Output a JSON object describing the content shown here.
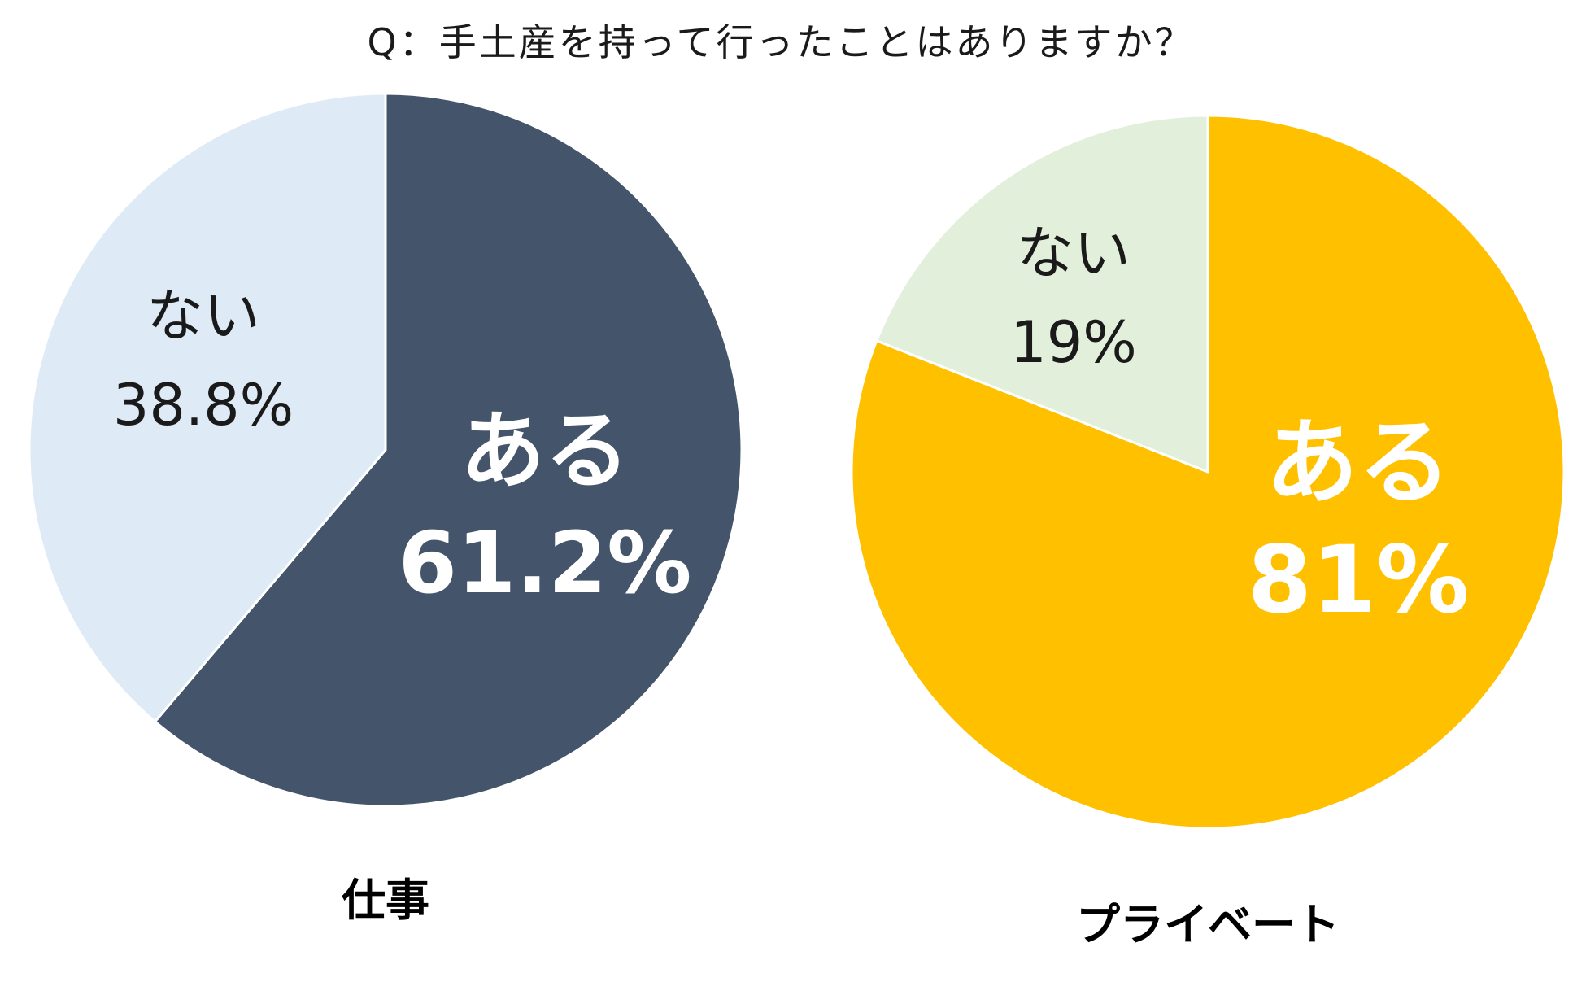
{
  "chart_data": {
    "title": "Q：手土産を持って行ったことはありますか？",
    "type": "pie",
    "charts": [
      {
        "name": "仕事",
        "slices": [
          {
            "label": "ある",
            "value_label": "61.2%",
            "value": 61.2,
            "color": "#44546A",
            "text_style": "light"
          },
          {
            "label": "ない",
            "value_label": "38.8%",
            "value": 38.8,
            "color": "#DEEAF6",
            "text_style": "dark"
          }
        ]
      },
      {
        "name": "プライベート",
        "slices": [
          {
            "label": "ある",
            "value_label": "81%",
            "value": 81,
            "color": "#FFC000",
            "text_style": "light"
          },
          {
            "label": "ない",
            "value_label": "19%",
            "value": 19,
            "color": "#E2EFDA",
            "text_style": "dark"
          }
        ]
      }
    ]
  }
}
